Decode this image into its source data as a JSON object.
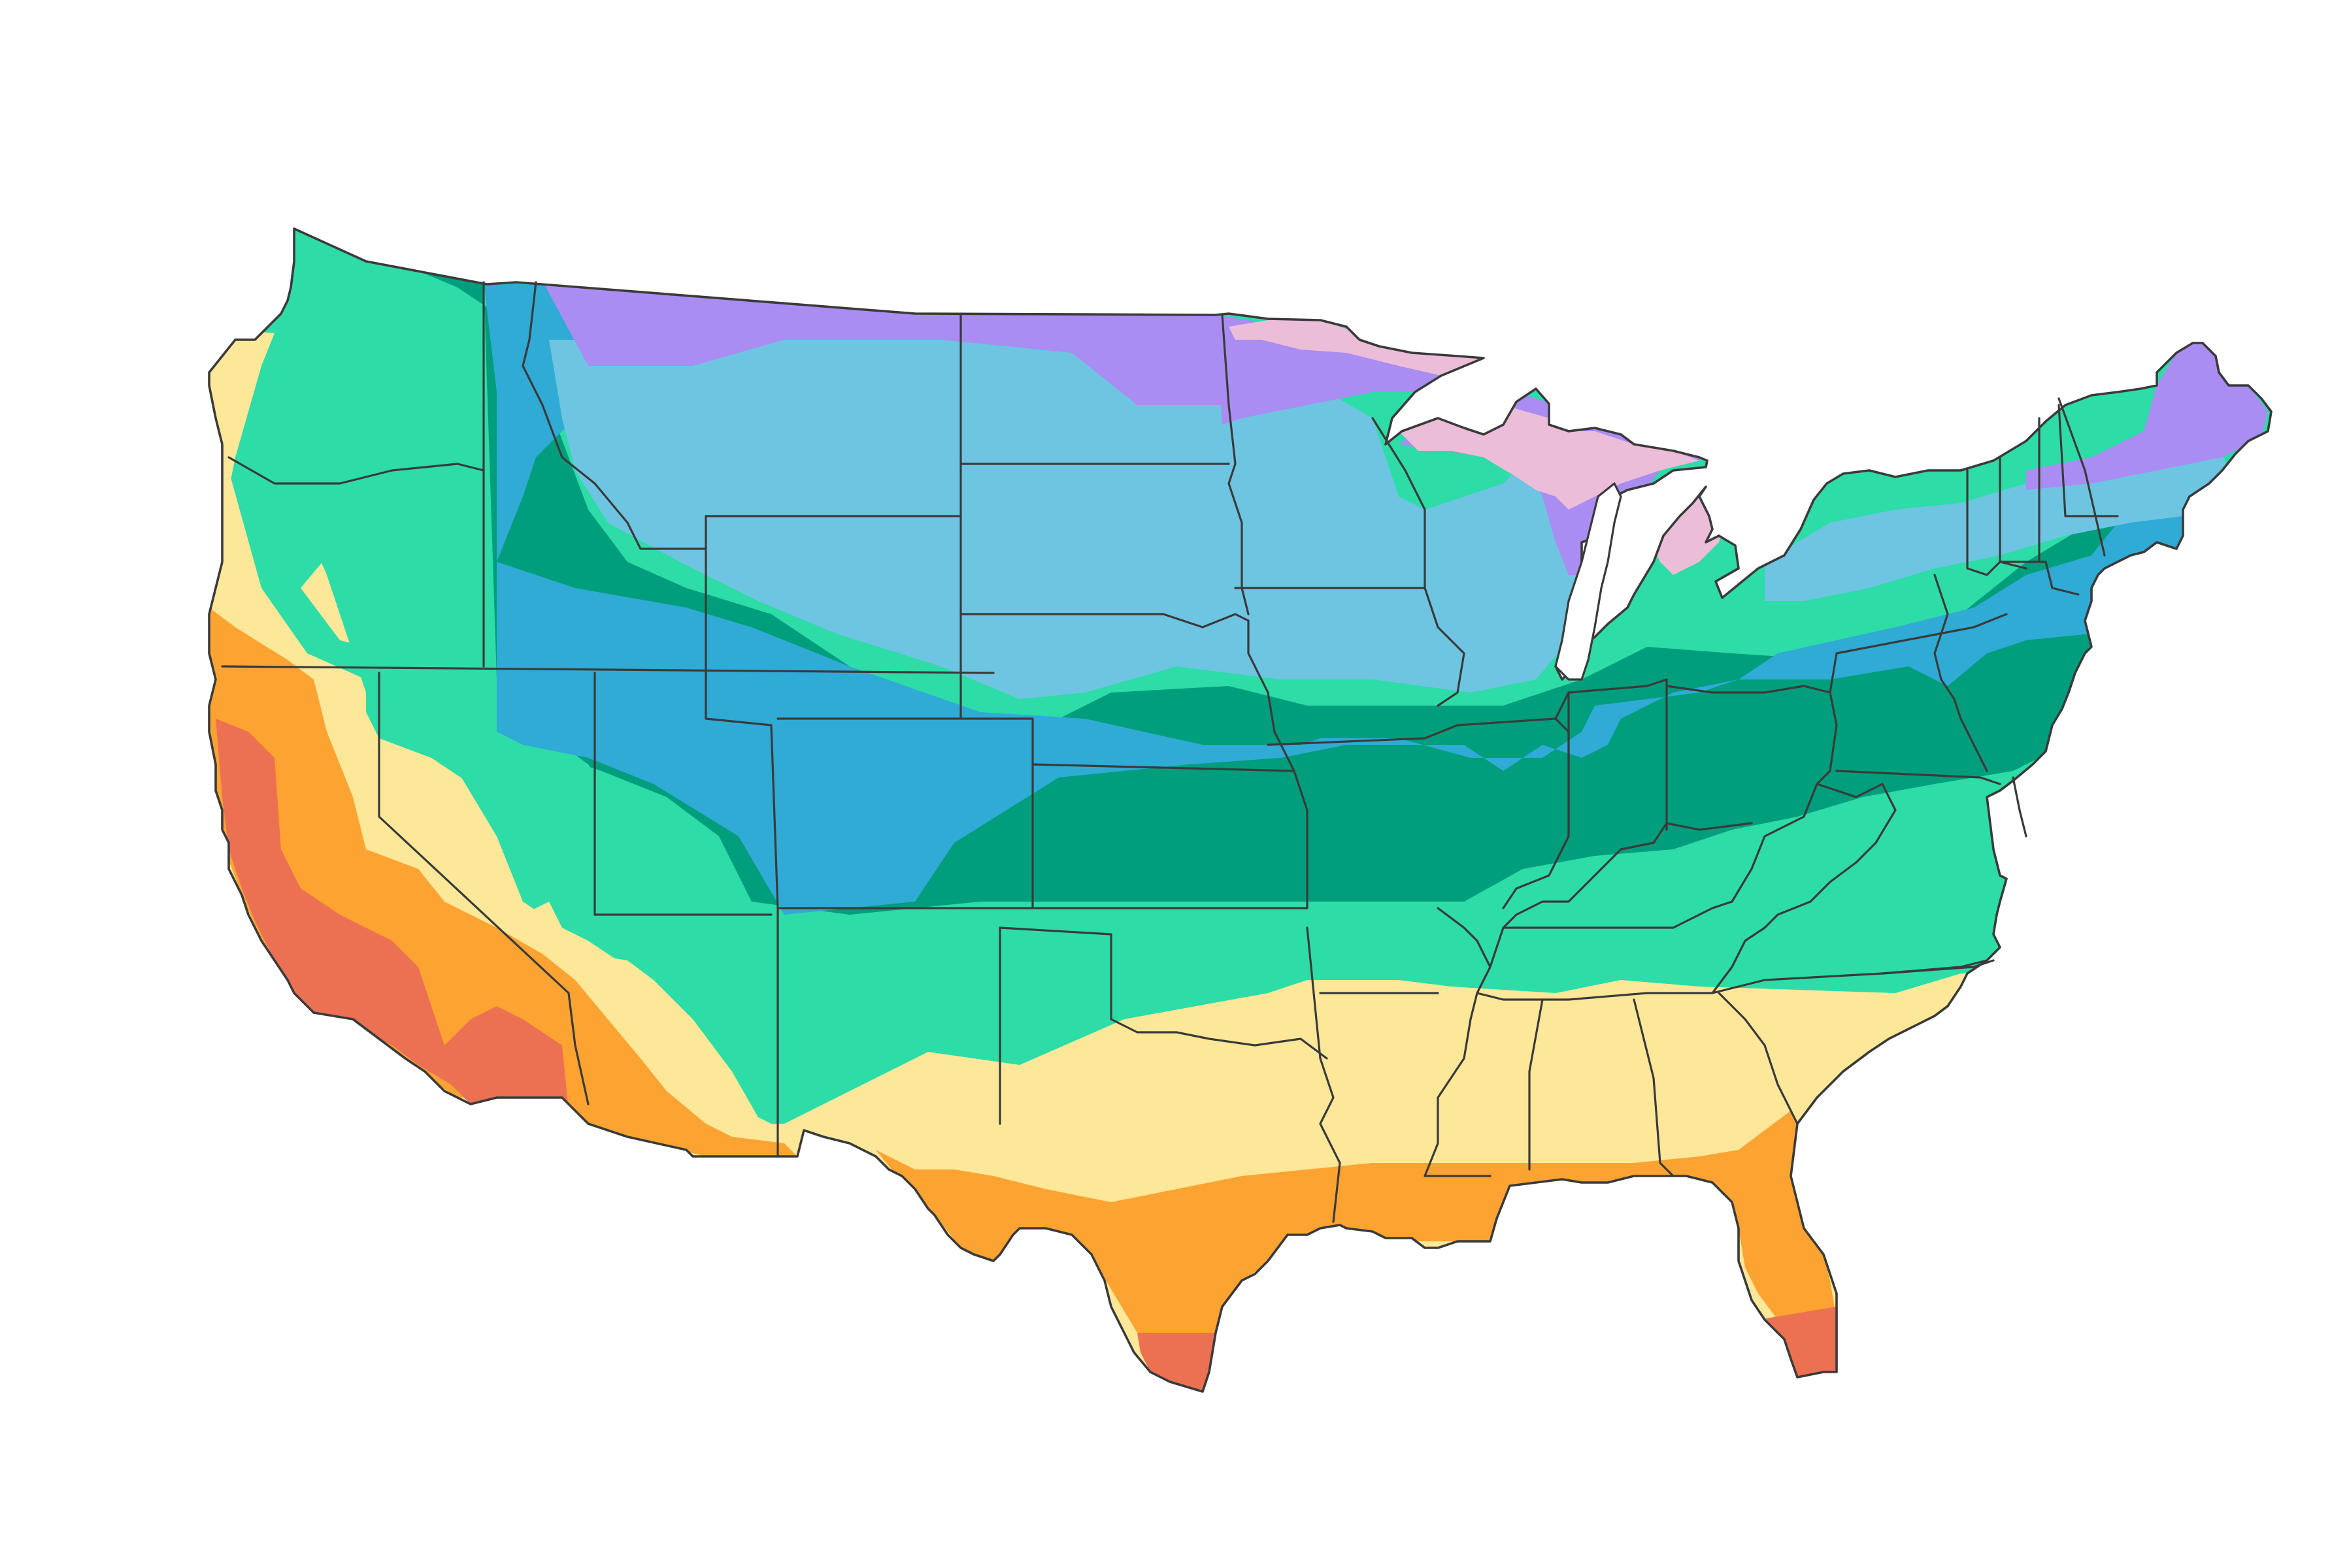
{
  "map": {
    "type": "choropleth",
    "region": "contiguous-united-states",
    "legend": "none",
    "title": "",
    "zone_colors": {
      "zone-pink": "#ecbdd8",
      "zone-purple": "#a98df2",
      "zone-light-blue": "#6ec5e2",
      "zone-blue": "#2fabd5",
      "zone-dark-green": "#009e7c",
      "zone-green": "#2ddca7",
      "zone-yellow": "#fde799",
      "zone-orange": "#fca332",
      "zone-red": "#ec7152"
    },
    "border_color": "#3a3a3a",
    "background": "#ffffff"
  }
}
